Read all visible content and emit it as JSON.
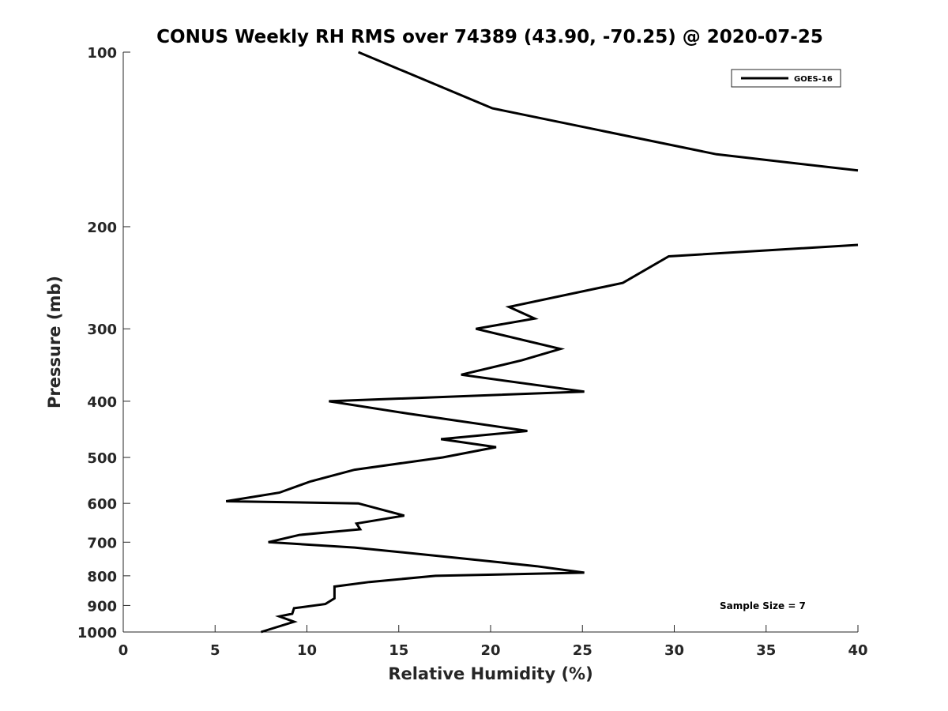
{
  "chart_data": {
    "type": "line",
    "title": "CONUS Weekly RH RMS over 74389 (43.90, -70.25) @ 2020-07-25",
    "xlabel": "Relative Humidity (%)",
    "ylabel": "Pressure (mb)",
    "xlim": [
      0,
      40
    ],
    "ylim": [
      1000,
      100
    ],
    "yscale": "log",
    "y_reversed": true,
    "grid": false,
    "legend_position": "top-right",
    "x_ticks": [
      0,
      5,
      10,
      15,
      20,
      25,
      30,
      35,
      40
    ],
    "y_ticks": [
      100,
      200,
      300,
      400,
      500,
      600,
      700,
      800,
      900,
      1000
    ],
    "series": [
      {
        "name": "GOES-16",
        "color": "#000000",
        "points": [
          {
            "x": 12.8,
            "y": 100
          },
          {
            "x": 20.1,
            "y": 125
          },
          {
            "x": 32.3,
            "y": 150
          },
          {
            "x": 40.0,
            "y": 160
          },
          {
            "x": null,
            "y": null
          },
          {
            "x": 40.0,
            "y": 215
          },
          {
            "x": 29.7,
            "y": 225
          },
          {
            "x": 27.2,
            "y": 250
          },
          {
            "x": 21.0,
            "y": 275
          },
          {
            "x": 22.4,
            "y": 288
          },
          {
            "x": 19.2,
            "y": 300
          },
          {
            "x": 23.8,
            "y": 325
          },
          {
            "x": 21.7,
            "y": 340
          },
          {
            "x": 18.4,
            "y": 360
          },
          {
            "x": 25.1,
            "y": 385
          },
          {
            "x": 11.2,
            "y": 400
          },
          {
            "x": 15.5,
            "y": 420
          },
          {
            "x": 22.0,
            "y": 450
          },
          {
            "x": 17.3,
            "y": 465
          },
          {
            "x": 20.3,
            "y": 480
          },
          {
            "x": 17.4,
            "y": 500
          },
          {
            "x": 12.6,
            "y": 525
          },
          {
            "x": 10.2,
            "y": 550
          },
          {
            "x": 8.5,
            "y": 575
          },
          {
            "x": 5.6,
            "y": 595
          },
          {
            "x": 12.8,
            "y": 600
          },
          {
            "x": 15.3,
            "y": 630
          },
          {
            "x": 12.7,
            "y": 650
          },
          {
            "x": 12.9,
            "y": 665
          },
          {
            "x": 9.6,
            "y": 680
          },
          {
            "x": 7.9,
            "y": 700
          },
          {
            "x": 12.6,
            "y": 715
          },
          {
            "x": 18.2,
            "y": 745
          },
          {
            "x": 22.5,
            "y": 770
          },
          {
            "x": 25.1,
            "y": 790
          },
          {
            "x": 17.0,
            "y": 800
          },
          {
            "x": 13.4,
            "y": 820
          },
          {
            "x": 11.5,
            "y": 835
          },
          {
            "x": 11.5,
            "y": 875
          },
          {
            "x": 11.0,
            "y": 895
          },
          {
            "x": 9.3,
            "y": 910
          },
          {
            "x": 9.2,
            "y": 930
          },
          {
            "x": 8.5,
            "y": 940
          },
          {
            "x": 9.3,
            "y": 960
          },
          {
            "x": 7.5,
            "y": 1000
          }
        ]
      }
    ],
    "annotations": [
      "Sample Size = 7"
    ]
  }
}
